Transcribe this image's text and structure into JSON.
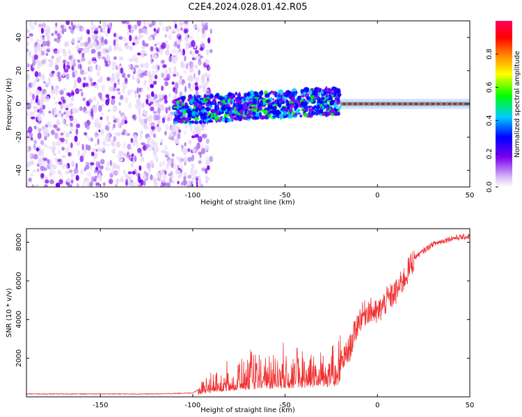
{
  "title": "C2E4.2024.028.01.42.R05",
  "colors": {
    "snr_line": "#f03030",
    "palette": [
      "#e8d8f8",
      "#7a00f0",
      "#0000ff",
      "#00ccff",
      "#00ff00",
      "#ffff00",
      "#ff8000",
      "#ff0000",
      "#ff0060"
    ]
  },
  "chart_data": [
    {
      "type": "heatmap",
      "name": "spectrogram",
      "xlabel": "Height of straight line (km)",
      "ylabel": "Frequency (Hz)",
      "xlim": [
        -190,
        50
      ],
      "ylim": [
        -50,
        50
      ],
      "xticks": [
        -150,
        -100,
        -50,
        0,
        50
      ],
      "yticks": [
        -40,
        -20,
        0,
        20,
        40
      ],
      "colorbar": {
        "label": "Normalized spectral amplitude",
        "range": [
          0,
          1
        ],
        "ticks": [
          "0.0",
          "0.2",
          "0.4",
          "0.6",
          "0.8"
        ]
      },
      "regions": [
        {
          "description": "broadband noise",
          "x_range": [
            -190,
            -95
          ],
          "freq_range": [
            -50,
            50
          ],
          "amplitude": 0.05
        },
        {
          "description": "noisy signal band",
          "x_range": [
            -110,
            -20
          ],
          "center_freq_start": -4,
          "center_freq_end": 2,
          "amplitude": 0.25
        },
        {
          "description": "clean tone near 0 Hz",
          "x_range": [
            -20,
            50
          ],
          "center_freq": 0,
          "amplitude": 0.95
        }
      ]
    },
    {
      "type": "line",
      "name": "snr",
      "xlabel": "Height of straight line (km)",
      "ylabel": "SNR (10 * v/v)",
      "xlim": [
        -190,
        50
      ],
      "ylim": [
        0,
        8700
      ],
      "xticks": [
        -150,
        -100,
        -50,
        0,
        50
      ],
      "yticks": [
        2000,
        4000,
        6000,
        8000
      ],
      "series": [
        {
          "name": "SNR",
          "x": [
            -190,
            -150,
            -120,
            -100,
            -95,
            -85,
            -70,
            -50,
            -30,
            -20,
            -15,
            -10,
            -5,
            0,
            5,
            10,
            15,
            20,
            30,
            40,
            50
          ],
          "y": [
            150,
            150,
            150,
            200,
            500,
            900,
            1200,
            1400,
            1600,
            1700,
            2500,
            4000,
            4500,
            4300,
            5000,
            5400,
            6200,
            7200,
            7900,
            8200,
            8300
          ]
        }
      ]
    }
  ]
}
